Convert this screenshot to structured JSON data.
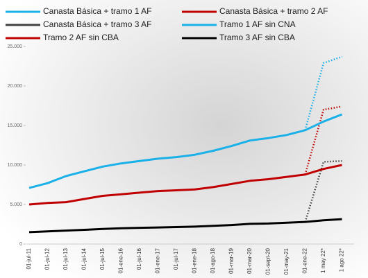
{
  "chart_data": {
    "type": "line",
    "categories": [
      "01-jul-11",
      "01-jul-12",
      "01-jul-13",
      "01-jul-14",
      "01-jul-15",
      "01-ene-16",
      "01-jul-16",
      "01-ene-17",
      "01-jul-17",
      "01-ene-18",
      "01-ago-18",
      "01-mar-19",
      "01-mar-20",
      "01-sept-20",
      "01-may-21",
      "01-ene-22",
      "1 may 22*",
      "1 ago 22*"
    ],
    "series": [
      {
        "name": "Canasta Básica + tramo 1 AF",
        "color": "#1ab0e8",
        "dashed": true,
        "values": [
          null,
          null,
          null,
          null,
          null,
          null,
          null,
          null,
          null,
          null,
          null,
          null,
          null,
          null,
          null,
          14400,
          22900,
          23700
        ]
      },
      {
        "name": "Canasta Básica + tramo 2 AF",
        "color": "#c00000",
        "dashed": true,
        "values": [
          null,
          null,
          null,
          null,
          null,
          null,
          null,
          null,
          null,
          null,
          null,
          null,
          null,
          null,
          null,
          8800,
          17000,
          17400
        ]
      },
      {
        "name": "Canasta Básica + tramo 3 AF",
        "color": "#404040",
        "dashed": true,
        "values": [
          null,
          null,
          null,
          null,
          null,
          null,
          null,
          null,
          null,
          null,
          null,
          null,
          null,
          null,
          null,
          2800,
          10400,
          10500
        ]
      },
      {
        "name": "Tramo 1 AF sin CNA",
        "color": "#1ab0e8",
        "dashed": false,
        "values": [
          7100,
          7700,
          8600,
          9200,
          9800,
          10200,
          10500,
          10800,
          11000,
          11300,
          11800,
          12400,
          13100,
          13400,
          13800,
          14400,
          15500,
          16400
        ]
      },
      {
        "name": "Tramo 2 AF sin CBA",
        "color": "#c00000",
        "dashed": false,
        "values": [
          5000,
          5200,
          5300,
          5700,
          6100,
          6300,
          6500,
          6700,
          6800,
          6900,
          7200,
          7600,
          8000,
          8200,
          8500,
          8800,
          9500,
          10000
        ]
      },
      {
        "name": "Tramo 3 AF sin CBA",
        "color": "#000000",
        "dashed": false,
        "values": [
          1500,
          1600,
          1700,
          1800,
          1900,
          2000,
          2050,
          2100,
          2150,
          2200,
          2300,
          2400,
          2550,
          2600,
          2700,
          2800,
          3000,
          3150
        ]
      }
    ],
    "ylim": [
      0,
      25000
    ],
    "yticks": [
      {
        "value": 0,
        "label": "0"
      },
      {
        "value": 5000,
        "label": "5.000"
      },
      {
        "value": 10000,
        "label": "10.000"
      },
      {
        "value": 15000,
        "label": "15.000"
      },
      {
        "value": 20000,
        "label": "20.000"
      },
      {
        "value": 25000,
        "label": "25.000"
      }
    ],
    "grid": false
  }
}
